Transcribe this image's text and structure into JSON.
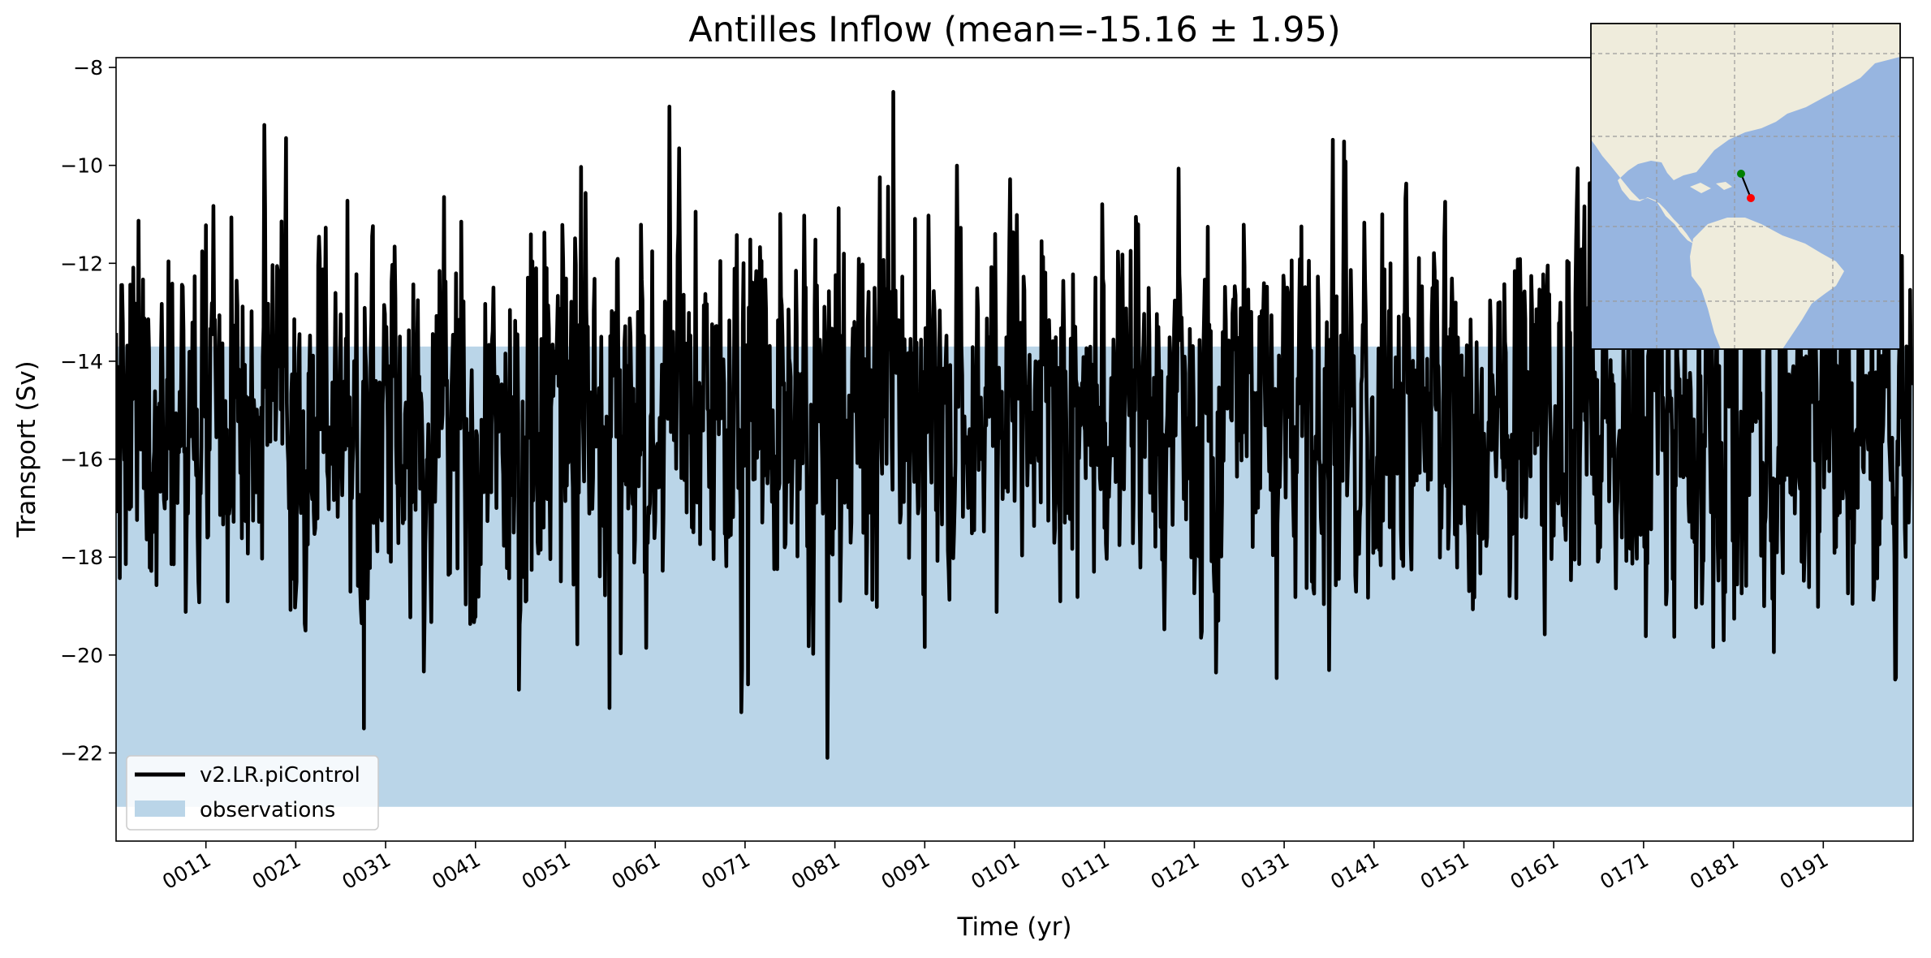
{
  "chart_data": {
    "type": "line",
    "title": "Antilles Inflow (mean=-15.16 ± 1.95)",
    "xlabel": "Time (yr)",
    "ylabel": "Transport (Sv)",
    "xlim": [
      1,
      201
    ],
    "ylim": [
      -23.8,
      -7.8
    ],
    "x_ticks": [
      11,
      21,
      31,
      41,
      51,
      61,
      71,
      81,
      91,
      101,
      111,
      121,
      131,
      141,
      151,
      161,
      171,
      181,
      191
    ],
    "x_tick_labels": [
      "0011",
      "0021",
      "0031",
      "0041",
      "0051",
      "0061",
      "0071",
      "0081",
      "0091",
      "0101",
      "0111",
      "0121",
      "0131",
      "0141",
      "0151",
      "0161",
      "0171",
      "0181",
      "0191"
    ],
    "y_ticks": [
      -22,
      -20,
      -18,
      -16,
      -14,
      -12,
      -10,
      -8
    ],
    "y_tick_labels": [
      "−22",
      "−20",
      "−18",
      "−16",
      "−14",
      "−12",
      "−10",
      "−8"
    ],
    "grid": false,
    "legend_position": "lower-left",
    "series": [
      {
        "name": "v2.LR.piControl",
        "kind": "line",
        "color": "#000000",
        "frequency": "monthly",
        "x_start": 1,
        "mean": -15.16,
        "std": 1.95,
        "min": -22.1,
        "max": -8.5,
        "extremes": [
          {
            "x": 87.5,
            "y": -8.5
          },
          {
            "x": 80.2,
            "y": -22.1
          },
          {
            "x": 28.6,
            "y": -21.5
          },
          {
            "x": 71.3,
            "y": -20.6
          }
        ]
      },
      {
        "name": "observations",
        "kind": "band",
        "color": "#bad5e8",
        "y_range": [
          -23.1,
          -13.7
        ]
      }
    ],
    "inset_map": {
      "description": "map",
      "land_color": "#efecdc",
      "ocean_color": "#97b5e0",
      "section_start_color": "#008000",
      "section_end_color": "#ff0000"
    }
  }
}
